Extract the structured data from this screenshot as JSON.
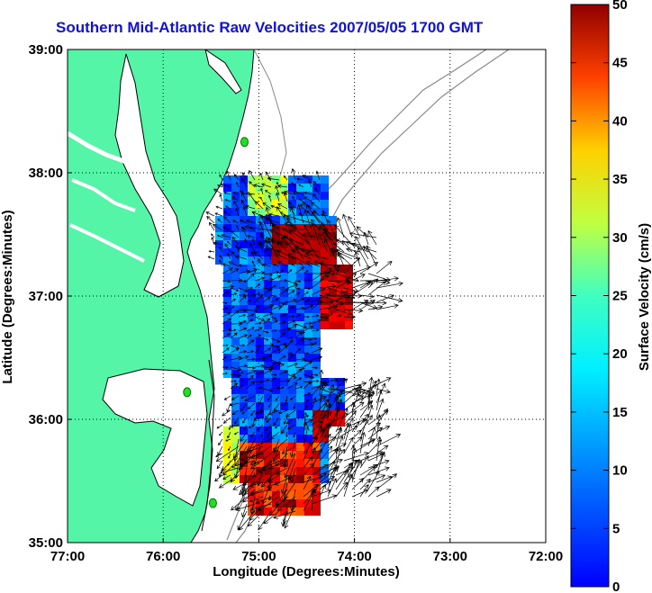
{
  "title": "Southern Mid-Atlantic Raw Velocities 2007/05/05 1700 GMT",
  "axes": {
    "x_label": "Longitude (Degrees:Minutes)",
    "y_label": "Latitude (Degrees:Minutes)",
    "x_ticks": [
      "77:00",
      "76:00",
      "75:00",
      "74:00",
      "73:00",
      "72:00"
    ],
    "y_ticks": [
      "39:00",
      "38:00",
      "37:00",
      "36:00",
      "35:00"
    ],
    "x_range": [
      -77,
      -72
    ],
    "y_range": [
      35,
      39
    ],
    "grid": "dotted"
  },
  "colorbar": {
    "label": "Surface Velocity (cm/s)",
    "ticks": [
      "50",
      "45",
      "40",
      "35",
      "30",
      "25",
      "20",
      "15",
      "10",
      "5",
      "0"
    ],
    "range": [
      0,
      50
    ],
    "colormap": "jet"
  },
  "colors": {
    "land": "#55f5a8",
    "coast": "#000000",
    "bathymetry": "#8a8a8a",
    "title": "#1010e0",
    "station": "#22dd22"
  },
  "stations": [
    {
      "lon": -75.15,
      "lat": 38.25
    },
    {
      "lon": -75.75,
      "lat": 36.22
    },
    {
      "lon": -75.48,
      "lat": 35.32
    }
  ]
}
